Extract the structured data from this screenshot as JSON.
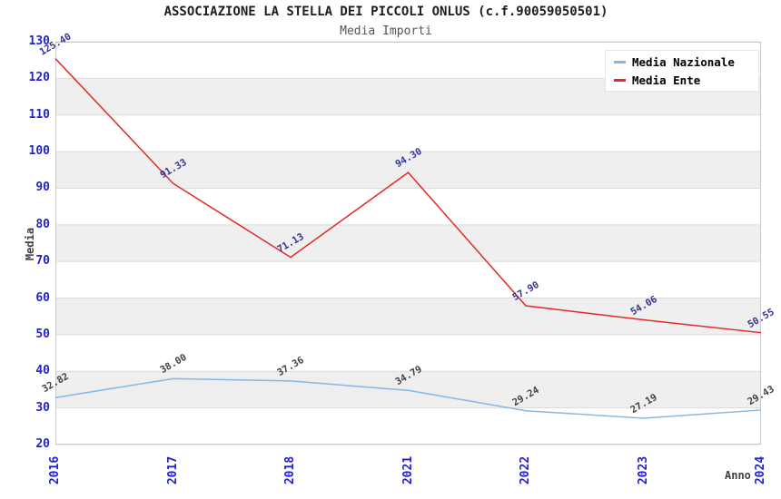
{
  "chart_data": {
    "type": "line",
    "title": "ASSOCIAZIONE LA STELLA DEI PICCOLI ONLUS (c.f.90059050501)",
    "subtitle": "Media Importi",
    "xlabel": "Anno",
    "ylabel": "Media",
    "categories": [
      "2016",
      "2017",
      "2018",
      "2021",
      "2022",
      "2023",
      "2024"
    ],
    "series": [
      {
        "name": "Media Nazionale",
        "color": "#86b7e6",
        "label_color": "#404040",
        "values": [
          32.82,
          38.0,
          37.36,
          34.79,
          29.24,
          27.19,
          29.43
        ]
      },
      {
        "name": "Media Ente",
        "color": "#e22a27",
        "label_color": "#333399",
        "values": [
          125.4,
          91.33,
          71.13,
          94.3,
          57.9,
          54.06,
          50.55
        ]
      }
    ],
    "ylim": [
      20,
      130
    ],
    "ytick_step": 10,
    "grid": true,
    "legend_position": "top-right",
    "axis_tick_color": "#2222cc",
    "grid_color": "#dcdcdc",
    "border_color": "#c9c9c9",
    "band_colors": [
      "#ffffff",
      "#efefef"
    ],
    "value_decimals": 2
  }
}
